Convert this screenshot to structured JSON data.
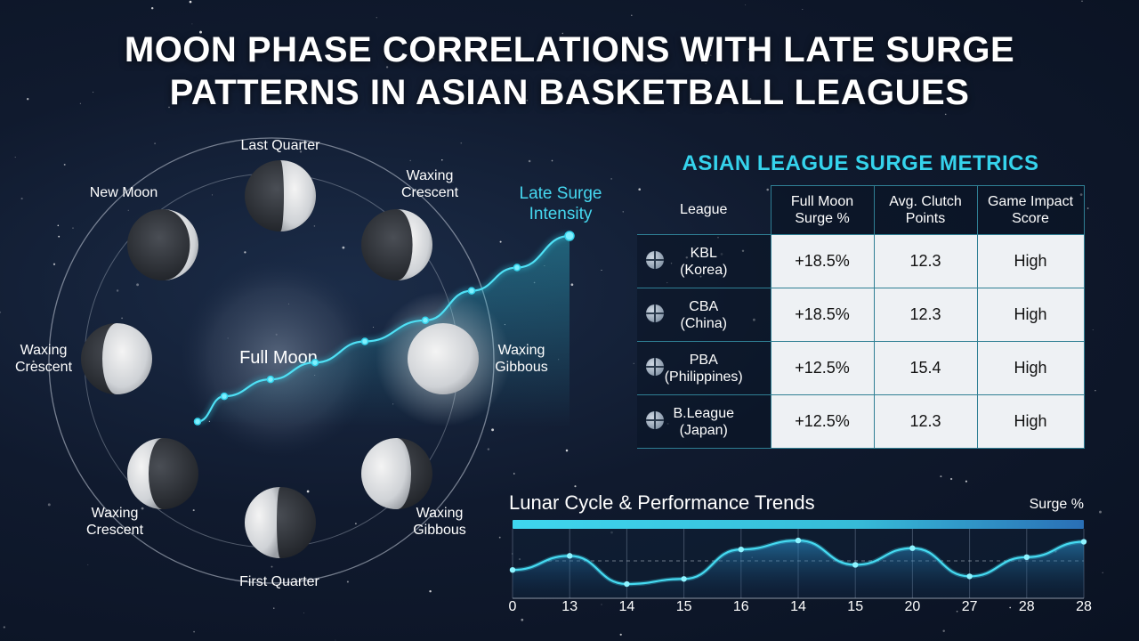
{
  "title": {
    "line1": "MOON PHASE CORRELATIONS WITH LATE SURGE",
    "line2": "PATTERNS IN ASIAN BASKETBALL LEAGUES"
  },
  "moon_cycle": {
    "center_label": "Full Moon",
    "surge_label_line1": "Late Surge",
    "surge_label_line2": "Intensity",
    "phases": [
      {
        "label_lines": [
          "Last Quarter"
        ],
        "shape": "last-quarter"
      },
      {
        "label_lines": [
          "Waxing",
          "Crescent"
        ],
        "shape": "waxing-crescent"
      },
      {
        "label_lines": [
          "Waxing",
          "Gibbous"
        ],
        "shape": "full-glow"
      },
      {
        "label_lines": [
          "Waxing",
          "Gibbous"
        ],
        "shape": "waning-gibbous"
      },
      {
        "label_lines": [
          "First Quarter"
        ],
        "shape": "first-quarter"
      },
      {
        "label_lines": [
          "Waxing",
          "Crescent"
        ],
        "shape": "waning-crescent"
      },
      {
        "label_lines": [
          "Waxing",
          "Crescent"
        ],
        "shape": "gibbous-left"
      },
      {
        "label_lines": [
          "New Moon"
        ],
        "shape": "new"
      }
    ]
  },
  "table": {
    "title": "ASIAN LEAGUE SURGE METRICS",
    "headers": [
      "League",
      "Full Moon Surge %",
      "Avg. Clutch Points",
      "Game Impact Score"
    ],
    "rows": [
      {
        "league": "KBL",
        "region": "(Korea)",
        "surge": "+18.5%",
        "clutch": "12.3",
        "impact": "High"
      },
      {
        "league": "CBA",
        "region": "(China)",
        "surge": "+18.5%",
        "clutch": "12.3",
        "impact": "High"
      },
      {
        "league": "PBA",
        "region": "(Philippines)",
        "surge": "+12.5%",
        "clutch": "15.4",
        "impact": "High"
      },
      {
        "league": "B.League",
        "region": "(Japan)",
        "surge": "+12.5%",
        "clutch": "12.3",
        "impact": "High"
      }
    ]
  },
  "colors": {
    "accent": "#35d3ec",
    "background": "#101a2e",
    "grid": "#2f7f94"
  },
  "chart_data": [
    {
      "type": "line",
      "title": "Late Surge Intensity",
      "x": [
        0,
        1,
        2,
        3,
        4,
        5,
        6,
        7,
        8
      ],
      "values": [
        0.12,
        0.24,
        0.32,
        0.4,
        0.5,
        0.6,
        0.74,
        0.85,
        1.0
      ],
      "ylim": [
        0,
        1
      ],
      "grid": false
    },
    {
      "type": "line",
      "title": "Lunar Cycle & Performance Trends",
      "ylabel": "Surge %",
      "categories": [
        "0",
        "13",
        "14",
        "15",
        "16",
        "14",
        "15",
        "20",
        "27",
        "28",
        "28"
      ],
      "values": [
        0.4,
        0.62,
        0.18,
        0.26,
        0.72,
        0.86,
        0.48,
        0.74,
        0.3,
        0.6,
        0.84
      ],
      "ylim": [
        0,
        1
      ],
      "grid": true,
      "legend": "none"
    }
  ]
}
